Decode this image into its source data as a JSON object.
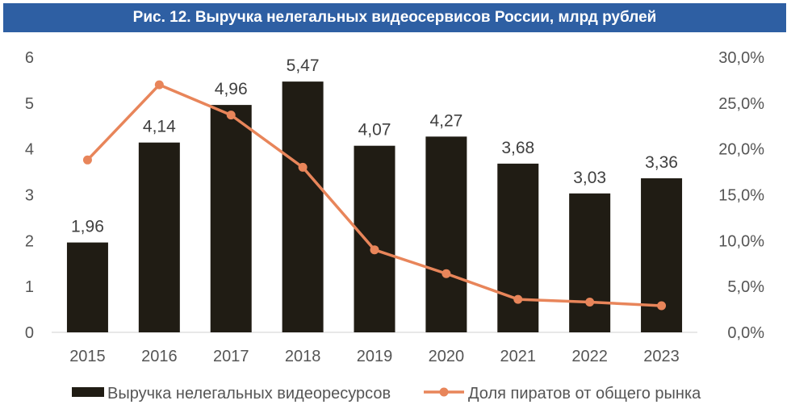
{
  "chart_data": {
    "type": "bar+line",
    "title": "Рис. 12. Выручка нелегальных видеосервисов России, млрд рублей",
    "categories": [
      "2015",
      "2016",
      "2017",
      "2018",
      "2019",
      "2020",
      "2021",
      "2022",
      "2023"
    ],
    "series": [
      {
        "name": "Выручка нелегальных видеоресурсов",
        "type": "bar",
        "axis": "left",
        "color": "#201c14",
        "values": [
          1.96,
          4.14,
          4.96,
          5.47,
          4.07,
          4.27,
          3.68,
          3.03,
          3.36
        ],
        "labels": [
          "1,96",
          "4,14",
          "4,96",
          "5,47",
          "4,07",
          "4,27",
          "3,68",
          "3,03",
          "3,36"
        ]
      },
      {
        "name": "Доля пиратов от общего рынка",
        "type": "line",
        "axis": "right",
        "color": "#e8855a",
        "values": [
          18.8,
          27.0,
          23.7,
          18.0,
          9.0,
          6.4,
          3.6,
          3.3,
          2.9
        ]
      }
    ],
    "y_left": {
      "ylim": [
        0,
        6
      ],
      "ticks": [
        "0",
        "1",
        "2",
        "3",
        "4",
        "5",
        "6"
      ]
    },
    "y_right": {
      "ylim": [
        0,
        30
      ],
      "ticks": [
        "0,0%",
        "5,0%",
        "10,0%",
        "15,0%",
        "20,0%",
        "25,0%",
        "30,0%"
      ]
    },
    "legend_position": "bottom",
    "grid": false
  }
}
